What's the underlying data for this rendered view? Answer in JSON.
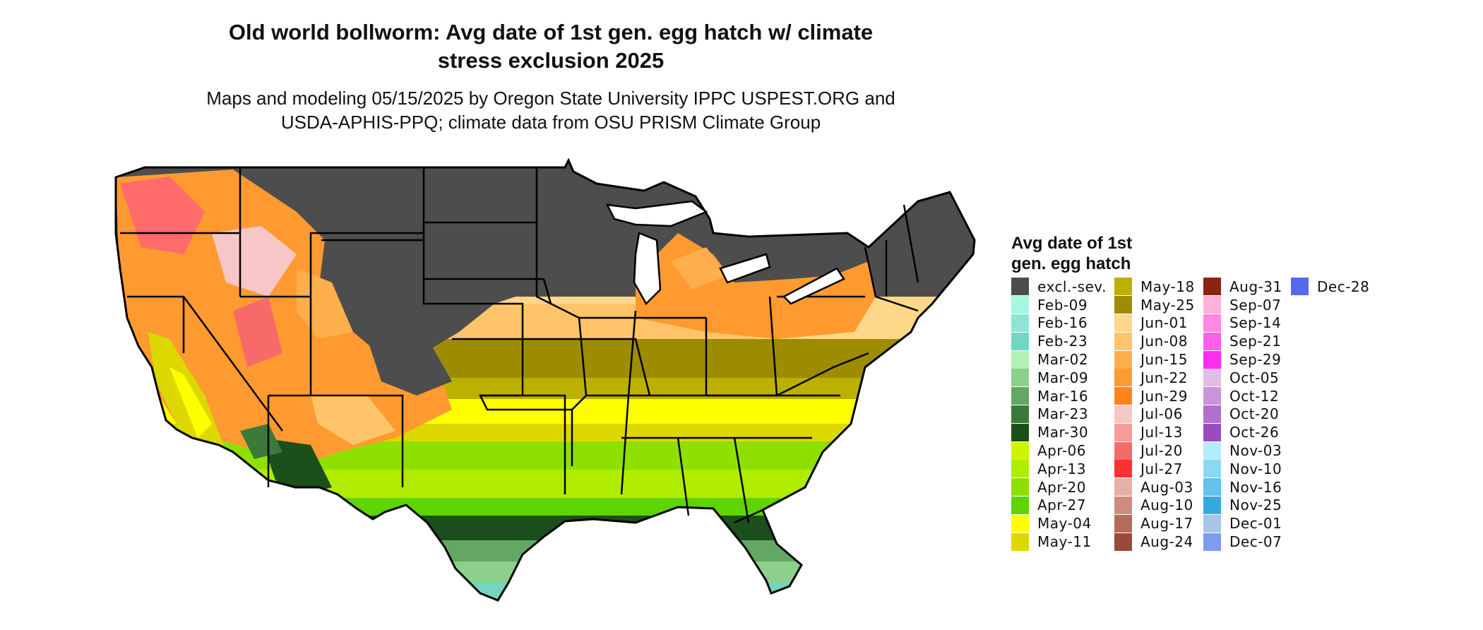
{
  "title_line1": "Old world bollworm: Avg date of 1st gen. egg hatch w/ climate",
  "title_line2": "stress exclusion 2025",
  "subtitle_line1": "Maps and modeling 05/15/2025 by Oregon State University IPPC USPEST.ORG and",
  "subtitle_line2": "USDA-APHIS-PPQ; climate data from OSU PRISM Climate Group",
  "legend": {
    "title_line1": "Avg date of 1st",
    "title_line2": "gen. egg hatch",
    "columns": [
      [
        {
          "label": "excl.-sev.",
          "color": "#4d4d4d"
        },
        {
          "label": "Feb-09",
          "color": "#a8f5e2"
        },
        {
          "label": "Feb-16",
          "color": "#8ee6d2"
        },
        {
          "label": "Feb-23",
          "color": "#72d6c0"
        },
        {
          "label": "Mar-02",
          "color": "#b4f0b4"
        },
        {
          "label": "Mar-09",
          "color": "#8cd08c"
        },
        {
          "label": "Mar-16",
          "color": "#64a664"
        },
        {
          "label": "Mar-23",
          "color": "#3c7a3c"
        },
        {
          "label": "Mar-30",
          "color": "#1b4f1b"
        },
        {
          "label": "Apr-06",
          "color": "#ccf500"
        },
        {
          "label": "Apr-13",
          "color": "#b0ec00"
        },
        {
          "label": "Apr-20",
          "color": "#8ee000"
        },
        {
          "label": "Apr-27",
          "color": "#5ed400"
        },
        {
          "label": "May-04",
          "color": "#ffff00"
        },
        {
          "label": "May-11",
          "color": "#dcd800"
        }
      ],
      [
        {
          "label": "May-18",
          "color": "#bcb000"
        },
        {
          "label": "May-25",
          "color": "#9e8c00"
        },
        {
          "label": "Jun-01",
          "color": "#ffd78a"
        },
        {
          "label": "Jun-08",
          "color": "#ffc46a"
        },
        {
          "label": "Jun-15",
          "color": "#ffae4c"
        },
        {
          "label": "Jun-22",
          "color": "#ff9a30"
        },
        {
          "label": "Jun-29",
          "color": "#ff8418"
        },
        {
          "label": "Jul-06",
          "color": "#f7c6c6"
        },
        {
          "label": "Jul-13",
          "color": "#f79a9a"
        },
        {
          "label": "Jul-20",
          "color": "#f76a6a"
        },
        {
          "label": "Jul-27",
          "color": "#ff3030"
        },
        {
          "label": "Aug-03",
          "color": "#e6b0a8"
        },
        {
          "label": "Aug-10",
          "color": "#cf8c7e"
        },
        {
          "label": "Aug-17",
          "color": "#b56a5a"
        },
        {
          "label": "Aug-24",
          "color": "#9a4a38"
        }
      ],
      [
        {
          "label": "Aug-31",
          "color": "#8b2310"
        },
        {
          "label": "Sep-07",
          "color": "#ffb2d8"
        },
        {
          "label": "Sep-14",
          "color": "#ff88e2"
        },
        {
          "label": "Sep-21",
          "color": "#ff5ee8"
        },
        {
          "label": "Sep-29",
          "color": "#ff2cf2"
        },
        {
          "label": "Oct-05",
          "color": "#e0bce6"
        },
        {
          "label": "Oct-12",
          "color": "#c896d8"
        },
        {
          "label": "Oct-20",
          "color": "#b070cc"
        },
        {
          "label": "Oct-26",
          "color": "#9a4cbe"
        },
        {
          "label": "Nov-03",
          "color": "#b4ecfc"
        },
        {
          "label": "Nov-10",
          "color": "#8cd8f4"
        },
        {
          "label": "Nov-16",
          "color": "#62c2ec"
        },
        {
          "label": "Nov-25",
          "color": "#36aae0"
        },
        {
          "label": "Dec-01",
          "color": "#a8c4e6"
        },
        {
          "label": "Dec-07",
          "color": "#7e9cee"
        }
      ],
      [
        {
          "label": "Dec-28",
          "color": "#5668f0"
        }
      ]
    ]
  }
}
